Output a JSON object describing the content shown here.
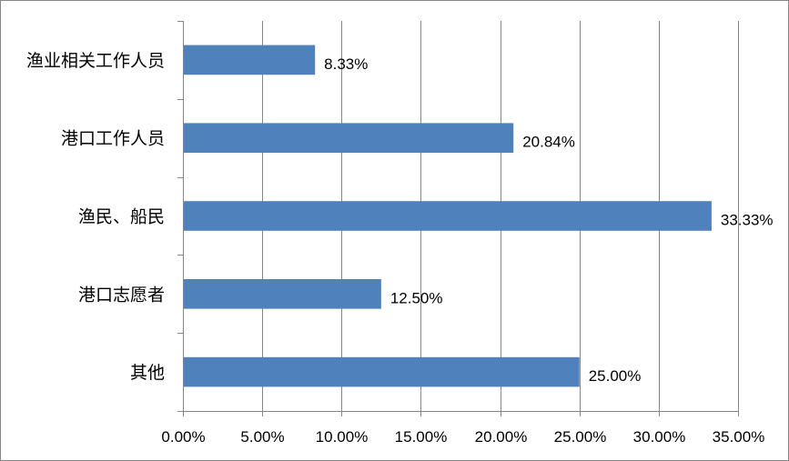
{
  "chart_data": {
    "type": "bar",
    "orientation": "horizontal",
    "title": "",
    "xlabel": "",
    "ylabel": "",
    "categories": [
      "渔业相关工作人员",
      "港口工作人员",
      "渔民、船民",
      "港口志愿者",
      "其他"
    ],
    "values": [
      8.33,
      20.84,
      33.33,
      12.5,
      25.0
    ],
    "value_labels": [
      "8.33%",
      "20.84%",
      "33.33%",
      "12.50%",
      "25.00%"
    ],
    "xlim": [
      0,
      35
    ],
    "x_ticks": [
      0,
      5,
      10,
      15,
      20,
      25,
      30,
      35
    ],
    "x_tick_labels": [
      "0.00%",
      "5.00%",
      "10.00%",
      "15.00%",
      "20.00%",
      "25.00%",
      "30.00%",
      "35.00%"
    ],
    "grid": "vertical",
    "legend": "none",
    "colors": {
      "bar": "#4F81BD",
      "grid": "#868686",
      "axis": "#868686"
    }
  }
}
